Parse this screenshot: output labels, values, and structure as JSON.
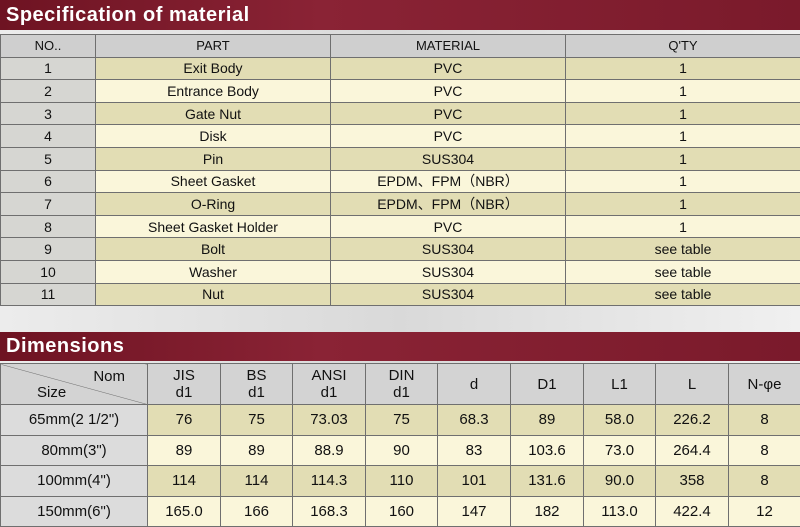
{
  "spec": {
    "title": "Specification of material",
    "headers": [
      "NO..",
      "PART",
      "MATERIAL",
      "Q'TY"
    ],
    "rows": [
      [
        "1",
        "Exit Body",
        "PVC",
        "1"
      ],
      [
        "2",
        "Entrance Body",
        "PVC",
        "1"
      ],
      [
        "3",
        "Gate Nut",
        "PVC",
        "1"
      ],
      [
        "4",
        "Disk",
        "PVC",
        "1"
      ],
      [
        "5",
        "Pin",
        "SUS304",
        "1"
      ],
      [
        "6",
        "Sheet  Gasket",
        "EPDM、FPM（NBR）",
        "1"
      ],
      [
        "7",
        "O-Ring",
        "EPDM、FPM（NBR）",
        "1"
      ],
      [
        "8",
        "Sheet Gasket Holder",
        "PVC",
        "1"
      ],
      [
        "9",
        "Bolt",
        "SUS304",
        "see table"
      ],
      [
        "10",
        "Washer",
        "SUS304",
        "see table"
      ],
      [
        "11",
        "Nut",
        "SUS304",
        "see table"
      ]
    ]
  },
  "dims": {
    "title": "Dimensions",
    "corner_top": "Nom",
    "corner_bottom": "Size",
    "headers": [
      "JIS\nd1",
      "BS\nd1",
      "ANSI\nd1",
      "DIN\nd1",
      "d",
      "D1",
      "L1",
      "L",
      "N-φe"
    ],
    "rows": [
      [
        "65mm(2 1/2\")",
        "76",
        "75",
        "73.03",
        "75",
        "68.3",
        "89",
        "58.0",
        "226.2",
        "8"
      ],
      [
        "80mm(3\")",
        "89",
        "89",
        "88.9",
        "90",
        "83",
        "103.6",
        "73.0",
        "264.4",
        "8"
      ],
      [
        "100mm(4\")",
        "114",
        "114",
        "114.3",
        "110",
        "101",
        "131.6",
        "90.0",
        "358",
        "8"
      ],
      [
        "150mm(6\")",
        "165.0",
        "166",
        "168.3",
        "160",
        "147",
        "182",
        "113.0",
        "422.4",
        "12"
      ]
    ]
  }
}
